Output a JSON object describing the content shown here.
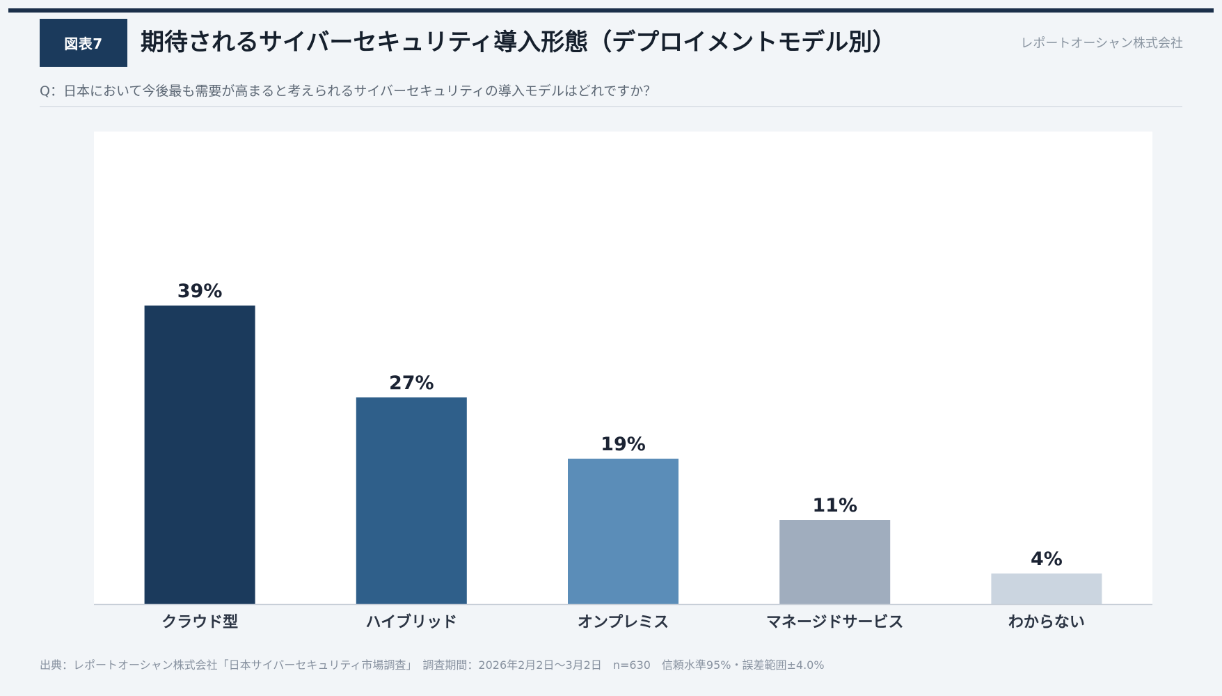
{
  "figure": {
    "badge": "図表7",
    "title": "期待されるサイバーセキュリティ導入形態（デプロイメントモデル別）",
    "company": "レポートオーシャン株式会社",
    "question": "Q：日本において今後最も需要が高まると考えられるサイバーセキュリティの導入モデルはどれですか？",
    "footnote": "出典：レポートオーシャン株式会社「日本サイバーセキュリティ市場調査」　調査期間：2026年2月2日〜3月2日　n=630　信頼水準95%・誤差範囲±4.0%"
  },
  "chart_data": {
    "type": "bar",
    "categories": [
      "クラウド型",
      "ハイブリッド",
      "オンプレミス",
      "マネージドサービス",
      "わからない"
    ],
    "values": [
      39,
      27,
      19,
      11,
      4
    ],
    "value_labels": [
      "39%",
      "27%",
      "19%",
      "11%",
      "4%"
    ],
    "unit": "%",
    "ylim": [
      0,
      50
    ],
    "grid": false,
    "legend": "none",
    "colors": [
      "#1b3a5c",
      "#2f5f8a",
      "#5b8db8",
      "#a0adbe",
      "#cbd5e0"
    ]
  }
}
